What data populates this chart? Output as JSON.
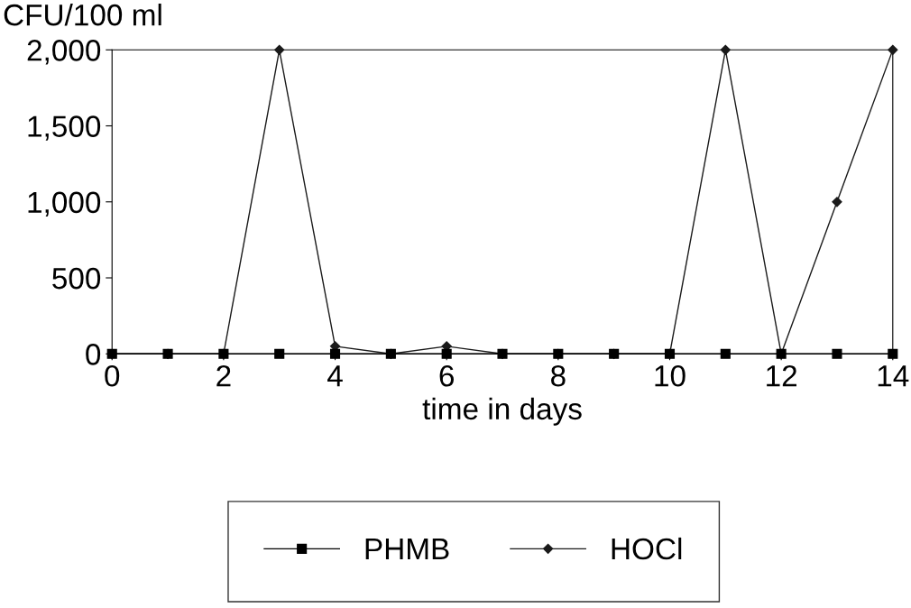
{
  "chart_data": {
    "type": "line",
    "xlabel": "time in days",
    "ylabel": "CFU/100 ml",
    "x": [
      0,
      1,
      2,
      3,
      4,
      5,
      6,
      7,
      8,
      9,
      10,
      11,
      12,
      13,
      14
    ],
    "series": [
      {
        "name": "PHMB",
        "color": "#000000",
        "marker": "square",
        "values": [
          0,
          0,
          0,
          0,
          0,
          0,
          0,
          0,
          0,
          0,
          0,
          0,
          0,
          0,
          0
        ]
      },
      {
        "name": "HOCl",
        "color": "#1a1a1a",
        "marker": "diamond",
        "values": [
          0,
          0,
          0,
          2000,
          50,
          0,
          50,
          0,
          0,
          0,
          0,
          2000,
          0,
          1000,
          2000
        ]
      }
    ],
    "xlim": [
      0,
      14
    ],
    "xticks": [
      0,
      2,
      4,
      6,
      8,
      10,
      12,
      14
    ],
    "ylim": [
      0,
      2000
    ],
    "yticks": [
      0,
      500,
      {
        "value": 1000,
        "label": "1,000"
      },
      {
        "value": 1500,
        "label": "1,500"
      },
      {
        "value": 2000,
        "label": "2,000"
      }
    ],
    "grid": false,
    "legend": "bottom",
    "line_style": "solid"
  }
}
